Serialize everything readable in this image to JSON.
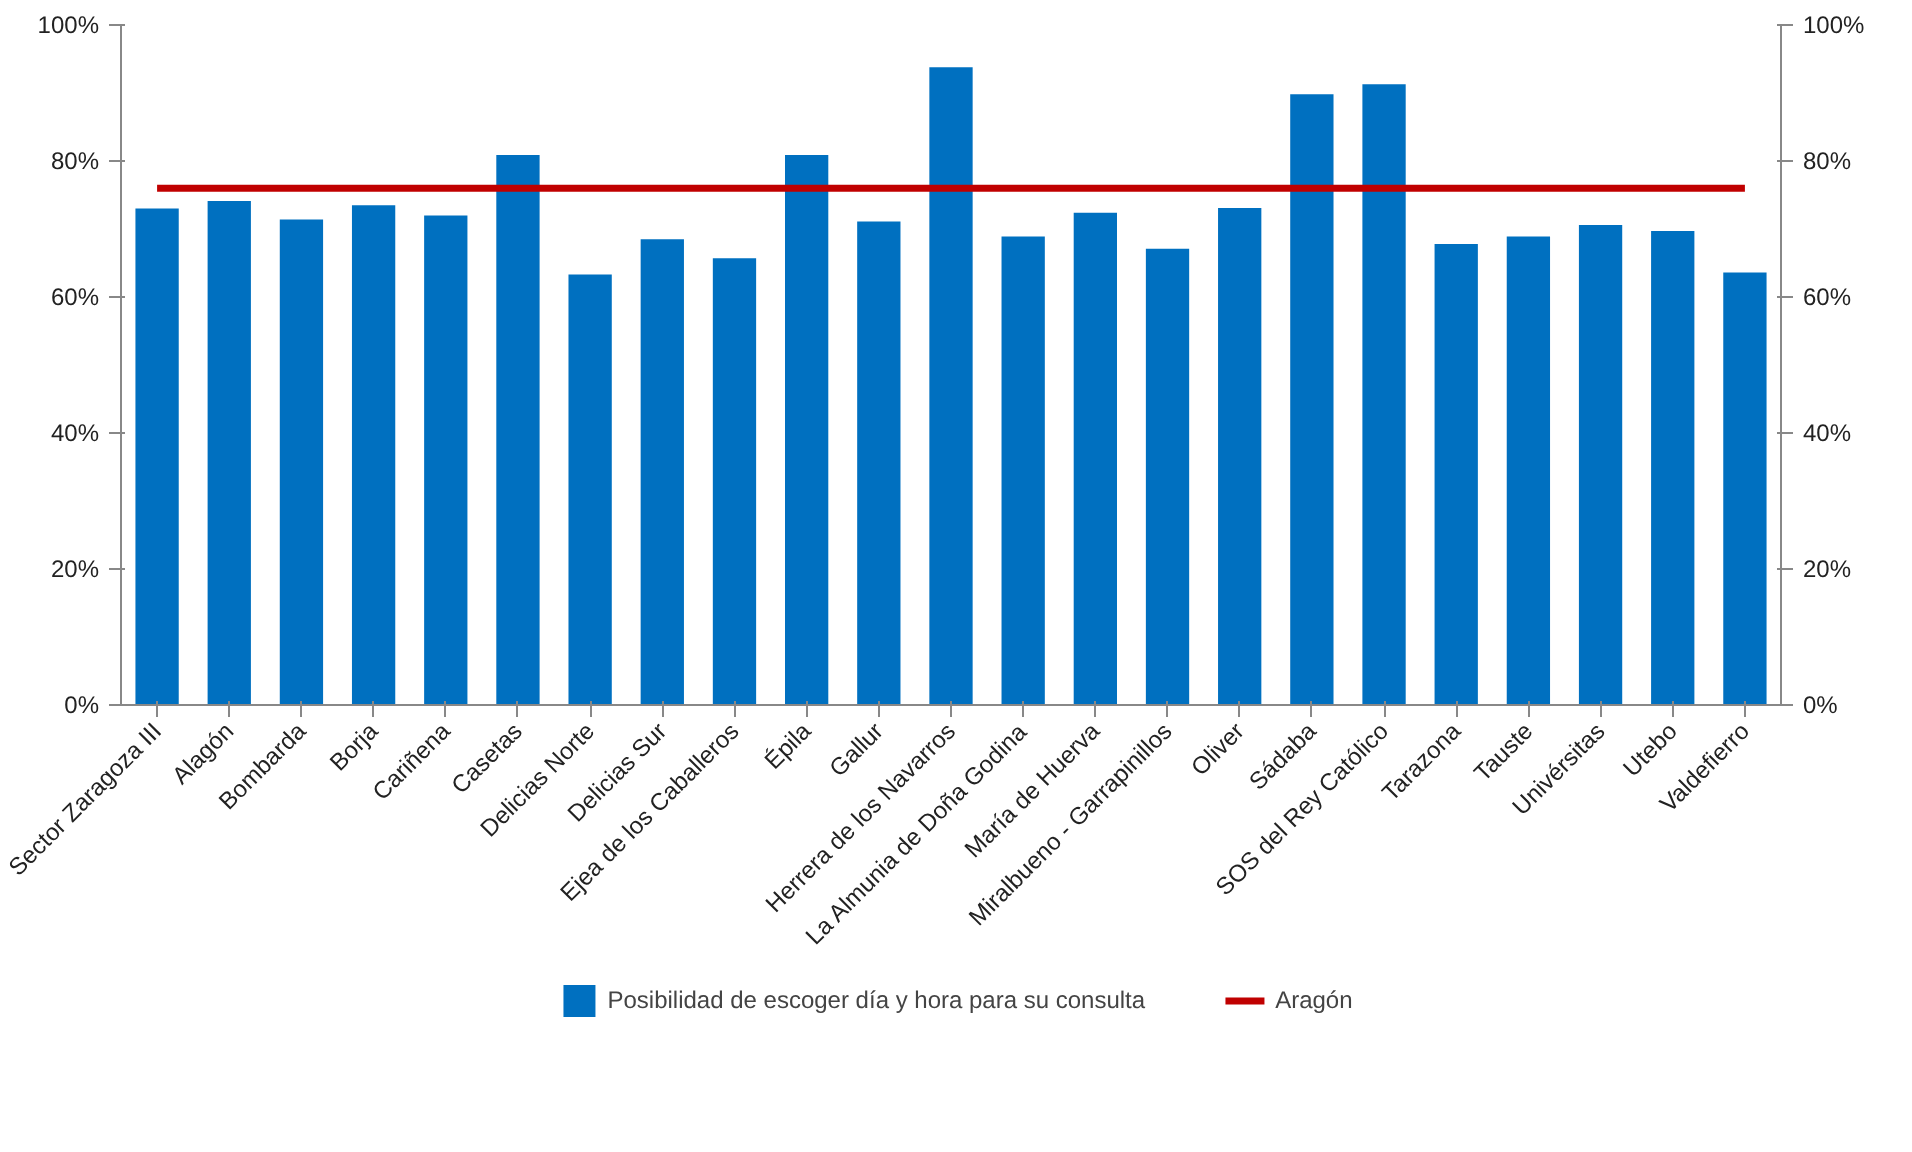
{
  "chart_data": {
    "type": "bar",
    "categories": [
      "Sector Zaragoza III",
      "Alagón",
      "Bombarda",
      "Borja",
      "Cariñena",
      "Casetas",
      "Delicias Norte",
      "Delicias Sur",
      "Ejea de los Caballeros",
      "Épila",
      "Gallur",
      "Herrera de los Navarros",
      "La Almunia de Doña Godina",
      "María de Huerva",
      "Miralbueno - Garrapinillos",
      "Oliver",
      "Sádaba",
      "SOS del Rey Católico",
      "Tarazona",
      "Tauste",
      "Univérsitas",
      "Utebo",
      "Valdefierro"
    ],
    "series": [
      {
        "name": "Posibilidad de escoger día y hora para su consulta",
        "type": "bar",
        "color": "#0070c0",
        "values": [
          73,
          74.1,
          71.4,
          73.5,
          72.0,
          80.9,
          63.3,
          68.5,
          65.7,
          80.9,
          71.1,
          93.8,
          68.9,
          72.4,
          67.1,
          73.1,
          89.8,
          91.3,
          67.8,
          68.9,
          70.6,
          69.7,
          63.6
        ]
      },
      {
        "name": "Aragón",
        "type": "line",
        "axis": "y2",
        "color": "#c00000",
        "values": [
          76,
          76,
          76,
          76,
          76,
          76,
          76,
          76,
          76,
          76,
          76,
          76,
          76,
          76,
          76,
          76,
          76,
          76,
          76,
          76,
          76,
          76,
          76
        ]
      }
    ],
    "ylim": [
      0,
      100
    ],
    "yticks": [
      {
        "value": 0,
        "label": "0%"
      },
      {
        "value": 20,
        "label": "20%"
      },
      {
        "value": 40,
        "label": "40%"
      },
      {
        "value": 60,
        "label": "60%"
      },
      {
        "value": 80,
        "label": "80%"
      },
      {
        "value": 100,
        "label": "100%"
      }
    ],
    "y2lim": [
      0,
      100
    ],
    "y2ticks": [
      {
        "value": 0,
        "label": "0%"
      },
      {
        "value": 20,
        "label": "20%"
      },
      {
        "value": 40,
        "label": "40%"
      },
      {
        "value": 60,
        "label": "60%"
      },
      {
        "value": 80,
        "label": "80%"
      },
      {
        "value": 100,
        "label": "100%"
      }
    ],
    "grid": false,
    "legend": "bottom"
  }
}
